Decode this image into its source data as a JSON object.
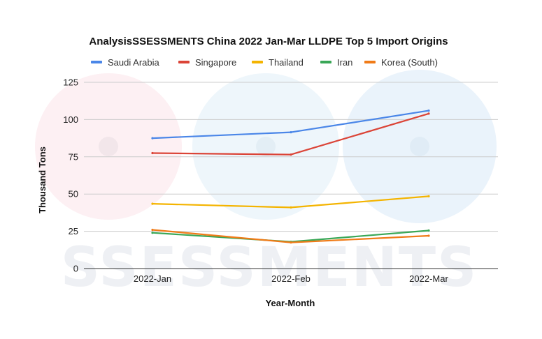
{
  "chart_data": {
    "type": "line",
    "title": "AnalysisSSESSMENTS China 2022 Jan-Mar LLDPE Top 5 Import Origins",
    "xlabel": "Year-Month",
    "ylabel": "Thousand Tons",
    "categories": [
      "2022-Jan",
      "2022-Feb",
      "2022-Mar"
    ],
    "ylim": [
      0,
      125
    ],
    "yticks": [
      0,
      25,
      50,
      75,
      100,
      125
    ],
    "grid": true,
    "legend_position": "top",
    "series": [
      {
        "name": "Saudi Arabia",
        "color": "#4a86e8",
        "values": [
          87.5,
          91.5,
          106
        ]
      },
      {
        "name": "Singapore",
        "color": "#db4437",
        "values": [
          77.5,
          76.5,
          104
        ]
      },
      {
        "name": "Thailand",
        "color": "#f4b400",
        "values": [
          43.5,
          41,
          48.5
        ]
      },
      {
        "name": "Iran",
        "color": "#3aa757",
        "values": [
          24,
          18,
          25.5
        ]
      },
      {
        "name": "Korea (South)",
        "color": "#f07b18",
        "values": [
          26,
          17.5,
          22
        ]
      }
    ]
  },
  "watermark": {
    "text": "SSESSMENTS"
  }
}
